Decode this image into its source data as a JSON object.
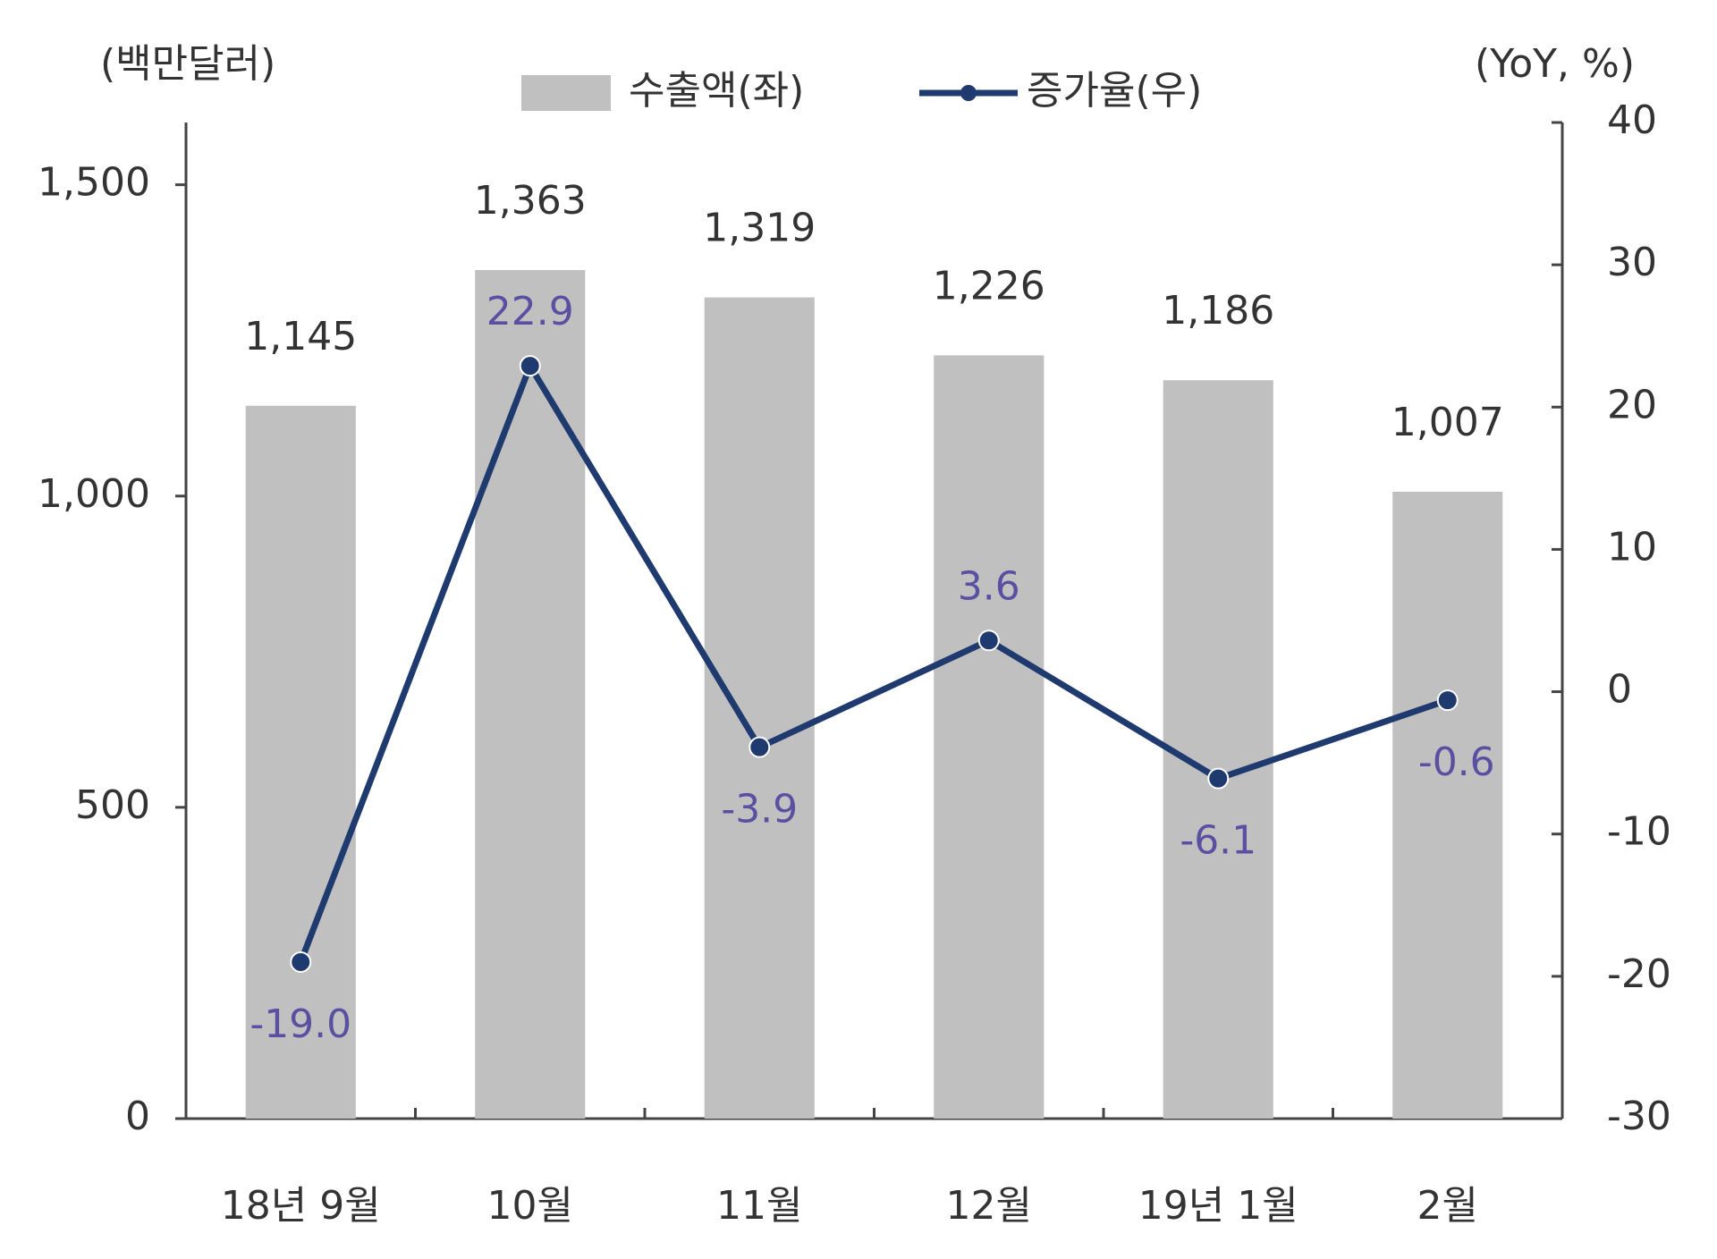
{
  "chart_data": {
    "type": "bar-line",
    "y_label": "(백만달러)",
    "y2_label": "(YoY, %)",
    "categories": [
      "18년 9월",
      "10월",
      "11월",
      "12월",
      "19년 1월",
      "2월"
    ],
    "series": [
      {
        "name": "수출액(좌)",
        "type": "bar",
        "color": "#c0c0c0",
        "values": [
          1145,
          1363,
          1319,
          1226,
          1186,
          1007
        ],
        "value_labels": [
          "1,145",
          "1,363",
          "1,319",
          "1,226",
          "1,186",
          "1,007"
        ]
      },
      {
        "name": "증가율(우)",
        "type": "line",
        "axis": "y2",
        "color": "#1f3a6e",
        "label_color": "#5a4fa0",
        "values": [
          -19.0,
          22.9,
          -3.9,
          3.6,
          -6.1,
          -0.6
        ],
        "value_labels": [
          "-19.0",
          "22.9",
          "-3.9",
          "3.6",
          "-6.1",
          "-0.6"
        ]
      }
    ],
    "ylim": [
      0,
      1600
    ],
    "yticks": [
      0,
      500,
      {
        "value": 1000,
        "label": "1,000"
      },
      {
        "value": 1500,
        "label": "1,500"
      }
    ],
    "y2lim": [
      -30,
      40
    ],
    "y2ticks": [
      -30,
      -20,
      -10,
      0,
      10,
      20,
      30,
      40
    ]
  }
}
